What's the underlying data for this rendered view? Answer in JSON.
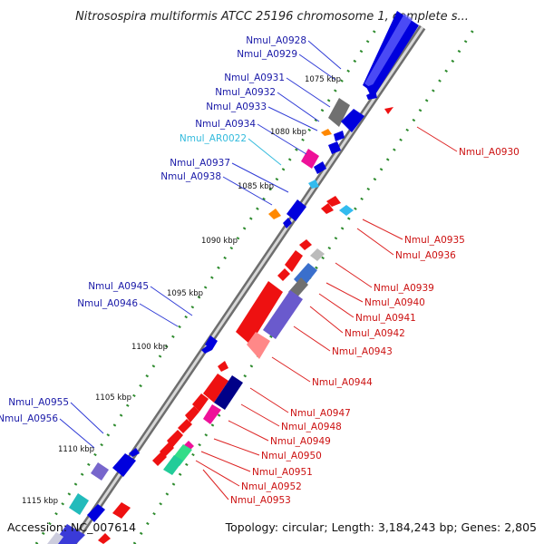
{
  "title": "Nitrosospira multiformis ATCC 25196 chromosome 1, complete s...",
  "footer": {
    "accession": "Accession: NC_007614",
    "summary": "Topology: circular; Length: 3,184,243 bp; Genes: 2,805"
  },
  "colors": {
    "axis": "#8a8a8a",
    "tick": "#2e8b2e",
    "forward_label": "#1a1aa8",
    "reverse_label": "#cc1111",
    "rna_label": "#33bbdd",
    "leader": "#2f3bd6",
    "leader_reverse": "#dd2222"
  },
  "kbp_ticks": [
    {
      "text": "1075 kbp"
    },
    {
      "text": "1080 kbp"
    },
    {
      "text": "1085 kbp"
    },
    {
      "text": "1090 kbp"
    },
    {
      "text": "1095 kbp"
    },
    {
      "text": "1100 kbp"
    },
    {
      "text": "1105 kbp"
    },
    {
      "text": "1110 kbp"
    },
    {
      "text": "1115 kbp"
    }
  ],
  "labels_left": [
    {
      "text": "Nmul_A0928",
      "color": "#1a1aa8"
    },
    {
      "text": "Nmul_A0929",
      "color": "#1a1aa8"
    },
    {
      "text": "Nmul_A0931",
      "color": "#1a1aa8"
    },
    {
      "text": "Nmul_A0932",
      "color": "#1a1aa8"
    },
    {
      "text": "Nmul_A0933",
      "color": "#1a1aa8"
    },
    {
      "text": "Nmul_A0934",
      "color": "#1a1aa8"
    },
    {
      "text": "Nmul_AR0022",
      "color": "#33bbdd"
    },
    {
      "text": "Nmul_A0937",
      "color": "#1a1aa8"
    },
    {
      "text": "Nmul_A0938",
      "color": "#1a1aa8"
    },
    {
      "text": "Nmul_A0945",
      "color": "#1a1aa8"
    },
    {
      "text": "Nmul_A0946",
      "color": "#1a1aa8"
    },
    {
      "text": "Nmul_A0955",
      "color": "#1a1aa8"
    },
    {
      "text": "Nmul_A0956",
      "color": "#1a1aa8"
    }
  ],
  "labels_right": [
    {
      "text": "Nmul_A0930",
      "color": "#cc1111"
    },
    {
      "text": "Nmul_A0935",
      "color": "#cc1111"
    },
    {
      "text": "Nmul_A0936",
      "color": "#cc1111"
    },
    {
      "text": "Nmul_A0939",
      "color": "#cc1111"
    },
    {
      "text": "Nmul_A0940",
      "color": "#cc1111"
    },
    {
      "text": "Nmul_A0941",
      "color": "#cc1111"
    },
    {
      "text": "Nmul_A0942",
      "color": "#cc1111"
    },
    {
      "text": "Nmul_A0943",
      "color": "#cc1111"
    },
    {
      "text": "Nmul_A0944",
      "color": "#cc1111"
    },
    {
      "text": "Nmul_A0947",
      "color": "#cc1111"
    },
    {
      "text": "Nmul_A0948",
      "color": "#cc1111"
    },
    {
      "text": "Nmul_A0949",
      "color": "#cc1111"
    },
    {
      "text": "Nmul_A0950",
      "color": "#cc1111"
    },
    {
      "text": "Nmul_A0951",
      "color": "#cc1111"
    },
    {
      "text": "Nmul_A0952",
      "color": "#cc1111"
    },
    {
      "text": "Nmul_A0953",
      "color": "#cc1111"
    }
  ]
}
